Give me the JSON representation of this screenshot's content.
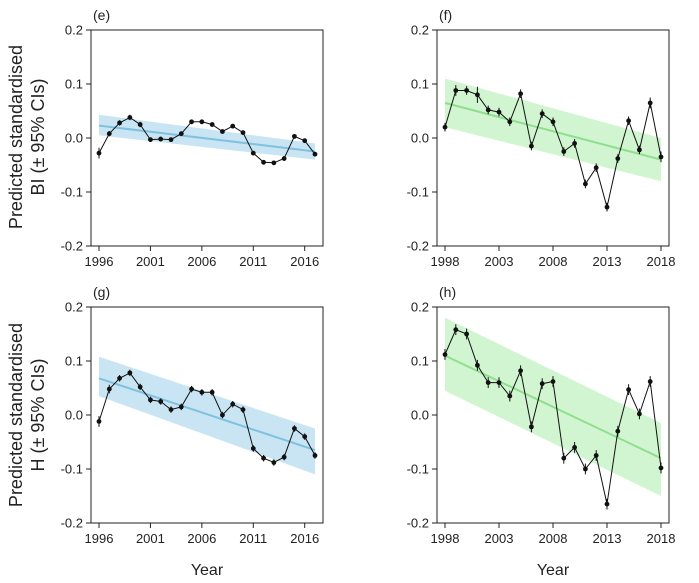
{
  "figure": {
    "ylabel_top_line1": "Predicted standardised",
    "ylabel_top_line2": "BI (± 95% CIs)",
    "ylabel_bottom_line1": "Predicted standardised",
    "ylabel_bottom_line2": "H (± 95% CIs)",
    "xlabel": "Year",
    "colors": {
      "blue_line": "#7fc1df",
      "blue_band": "#bfe0f2",
      "green_line": "#8fdf8f",
      "green_band": "#c8f3c8",
      "points": "#111111"
    }
  },
  "chart_data": [
    {
      "type": "line",
      "panel": "(e)",
      "xticks": [
        "1996",
        "2001",
        "2006",
        "2011",
        "2016"
      ],
      "yticks": [
        "-0.2",
        "-0.1",
        "0.0",
        "0.1",
        "0.2"
      ],
      "xlim": [
        1995.5,
        2017.5
      ],
      "ylim": [
        -0.2,
        0.2
      ],
      "x": [
        1996,
        1997,
        1998,
        1999,
        2000,
        2001,
        2002,
        2003,
        2004,
        2005,
        2006,
        2007,
        2008,
        2009,
        2010,
        2011,
        2012,
        2013,
        2014,
        2015,
        2016,
        2017
      ],
      "y": [
        -0.028,
        0.008,
        0.028,
        0.038,
        0.025,
        -0.003,
        -0.002,
        -0.003,
        0.008,
        0.03,
        0.03,
        0.025,
        0.012,
        0.022,
        0.01,
        -0.028,
        -0.045,
        -0.046,
        -0.038,
        0.003,
        -0.005,
        -0.03
      ],
      "err": [
        0.01,
        0.005,
        0.005,
        0.005,
        0.005,
        0.004,
        0.004,
        0.004,
        0.004,
        0.004,
        0.004,
        0.004,
        0.004,
        0.004,
        0.004,
        0.004,
        0.004,
        0.004,
        0.004,
        0.004,
        0.004,
        0.004
      ],
      "trend": {
        "x": [
          1996,
          2017
        ],
        "y": [
          0.023,
          -0.025
        ],
        "lower": [
          0.005,
          -0.04
        ],
        "upper": [
          0.043,
          -0.01
        ]
      },
      "color": "blue"
    },
    {
      "type": "line",
      "panel": "(f)",
      "xticks": [
        "1998",
        "2003",
        "2008",
        "2013",
        "2018"
      ],
      "yticks": [
        "-0.2",
        "-0.1",
        "0.0",
        "0.1",
        "0.2"
      ],
      "xlim": [
        1997.5,
        2018.5
      ],
      "ylim": [
        -0.2,
        0.2
      ],
      "x": [
        1998,
        1999,
        2000,
        2001,
        2002,
        2003,
        2004,
        2005,
        2006,
        2007,
        2008,
        2009,
        2010,
        2011,
        2012,
        2013,
        2014,
        2015,
        2016,
        2017,
        2018
      ],
      "y": [
        0.02,
        0.088,
        0.088,
        0.08,
        0.052,
        0.048,
        0.03,
        0.082,
        -0.015,
        0.045,
        0.03,
        -0.025,
        -0.01,
        -0.085,
        -0.055,
        -0.128,
        -0.038,
        0.032,
        -0.022,
        0.065,
        -0.035
      ],
      "err": [
        0.008,
        0.01,
        0.008,
        0.015,
        0.008,
        0.008,
        0.008,
        0.008,
        0.008,
        0.008,
        0.008,
        0.008,
        0.008,
        0.008,
        0.008,
        0.008,
        0.008,
        0.008,
        0.008,
        0.01,
        0.01
      ],
      "trend": {
        "x": [
          1998,
          2018
        ],
        "y": [
          0.065,
          -0.04
        ],
        "lower": [
          0.02,
          -0.08
        ],
        "upper": [
          0.11,
          0.0
        ]
      },
      "color": "green"
    },
    {
      "type": "line",
      "panel": "(g)",
      "xticks": [
        "1996",
        "2001",
        "2006",
        "2011",
        "2016"
      ],
      "yticks": [
        "-0.2",
        "-0.1",
        "0.0",
        "0.1",
        "0.2"
      ],
      "xlim": [
        1995.5,
        2017.5
      ],
      "ylim": [
        -0.2,
        0.2
      ],
      "x": [
        1996,
        1997,
        1998,
        1999,
        2000,
        2001,
        2002,
        2003,
        2004,
        2005,
        2006,
        2007,
        2008,
        2009,
        2010,
        2011,
        2012,
        2013,
        2014,
        2015,
        2016,
        2017
      ],
      "y": [
        -0.012,
        0.048,
        0.068,
        0.078,
        0.052,
        0.028,
        0.025,
        0.01,
        0.015,
        0.048,
        0.042,
        0.042,
        0.0,
        0.02,
        0.01,
        -0.062,
        -0.08,
        -0.088,
        -0.078,
        -0.025,
        -0.04,
        -0.075
      ],
      "err": [
        0.01,
        0.008,
        0.006,
        0.006,
        0.006,
        0.006,
        0.006,
        0.006,
        0.006,
        0.006,
        0.006,
        0.006,
        0.006,
        0.006,
        0.006,
        0.006,
        0.006,
        0.006,
        0.006,
        0.006,
        0.006,
        0.006
      ],
      "trend": {
        "x": [
          1996,
          2017
        ],
        "y": [
          0.068,
          -0.065
        ],
        "lower": [
          0.035,
          -0.11
        ],
        "upper": [
          0.108,
          -0.025
        ]
      },
      "color": "blue"
    },
    {
      "type": "line",
      "panel": "(h)",
      "xticks": [
        "1998",
        "2003",
        "2008",
        "2013",
        "2018"
      ],
      "yticks": [
        "-0.2",
        "-0.1",
        "0.0",
        "0.1",
        "0.2"
      ],
      "xlim": [
        1997.5,
        2018.5
      ],
      "ylim": [
        -0.2,
        0.2
      ],
      "x": [
        1998,
        1999,
        2000,
        2001,
        2002,
        2003,
        2004,
        2005,
        2006,
        2007,
        2008,
        2009,
        2010,
        2011,
        2012,
        2013,
        2014,
        2015,
        2016,
        2017,
        2018
      ],
      "y": [
        0.112,
        0.158,
        0.15,
        0.092,
        0.06,
        0.06,
        0.035,
        0.082,
        -0.022,
        0.058,
        0.062,
        -0.08,
        -0.06,
        -0.1,
        -0.075,
        -0.165,
        -0.03,
        0.047,
        0.002,
        0.062,
        -0.098
      ],
      "err": [
        0.01,
        0.01,
        0.01,
        0.01,
        0.01,
        0.01,
        0.01,
        0.01,
        0.01,
        0.01,
        0.01,
        0.01,
        0.01,
        0.01,
        0.01,
        0.01,
        0.01,
        0.01,
        0.01,
        0.01,
        0.01
      ],
      "trend": {
        "x": [
          1998,
          2018
        ],
        "y": [
          0.11,
          -0.08
        ],
        "lower": [
          0.045,
          -0.15
        ],
        "upper": [
          0.18,
          -0.015
        ]
      },
      "color": "green"
    }
  ]
}
